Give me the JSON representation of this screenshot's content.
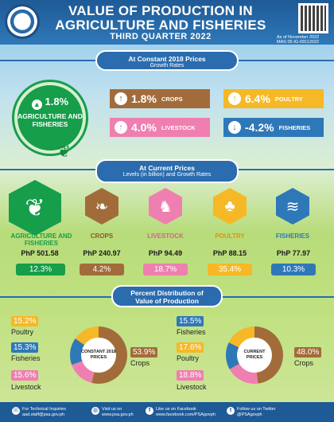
{
  "header": {
    "title_line1": "VALUE OF PRODUCTION IN",
    "title_line2": "AGRICULTURE AND FISHERIES",
    "subtitle": "THIRD QUARTER 2022",
    "as_of": "As of November 2022",
    "ref_code": "MAS 05-IG-09112022"
  },
  "constant_prices": {
    "heading": "At Constant 2018 Prices",
    "subheading": "Growth Rates",
    "agriculture": {
      "value": "1.8%",
      "label": "AGRICULTURE AND FISHERIES",
      "direction": "up"
    },
    "items": [
      {
        "name": "CROPS",
        "value": "1.8%",
        "direction": "up",
        "color": "#a26c3a"
      },
      {
        "name": "POULTRY",
        "value": "6.4%",
        "direction": "up",
        "color": "#f6b826"
      },
      {
        "name": "LIVESTOCK",
        "value": "4.0%",
        "direction": "up",
        "color": "#ef7fb0"
      },
      {
        "name": "FISHERIES",
        "value": "-4.2%",
        "direction": "down",
        "color": "#2f78b8"
      }
    ]
  },
  "current_prices": {
    "heading": "At Current Prices",
    "subheading": "Levels (in billion) and Growth Rates",
    "columns": [
      {
        "name": "AGRICULTURE AND FISHERIES",
        "level": "PhP 501.58",
        "rate": "12.3%",
        "icon": "sprout-icon"
      },
      {
        "name": "CROPS",
        "level": "PhP 240.97",
        "rate": "4.2%",
        "icon": "grain-icon"
      },
      {
        "name": "LIVESTOCK",
        "level": "PhP 94.49",
        "rate": "18.7%",
        "icon": "livestock-icon"
      },
      {
        "name": "POULTRY",
        "level": "PhP 88.15",
        "rate": "35.4%",
        "icon": "poultry-icon"
      },
      {
        "name": "FISHERIES",
        "level": "PhP 77.97",
        "rate": "10.3%",
        "icon": "fish-icon"
      }
    ]
  },
  "distribution": {
    "heading": "Percent Distribution of Value of Production",
    "constant": {
      "label": "CONSTANT 2018 PRICES",
      "poultry": "15.2%",
      "fisheries": "15.3%",
      "livestock": "15.6%",
      "crops": "53.9%"
    },
    "current": {
      "label": "CURRENT PRICES",
      "fisheries": "15.5%",
      "poultry": "17.6%",
      "livestock": "18.8%",
      "crops": "48.0%"
    },
    "labels": {
      "poultry": "Poultry",
      "fisheries": "Fisheries",
      "livestock": "Livestock",
      "crops": "Crops"
    }
  },
  "footer": {
    "inquiries_label": "For Technical Inquiries",
    "inquiries_email": "aad.staff@psa.gov.ph",
    "visit_label": "Visit us on",
    "visit_url": "www.psa.gov.ph",
    "fb_label": "Like us on Facebook",
    "fb_url": "www.facebook.com/PSAgovph",
    "tw_label": "Follow us on Twitter",
    "tw_handle": "@PSAgovph"
  }
}
